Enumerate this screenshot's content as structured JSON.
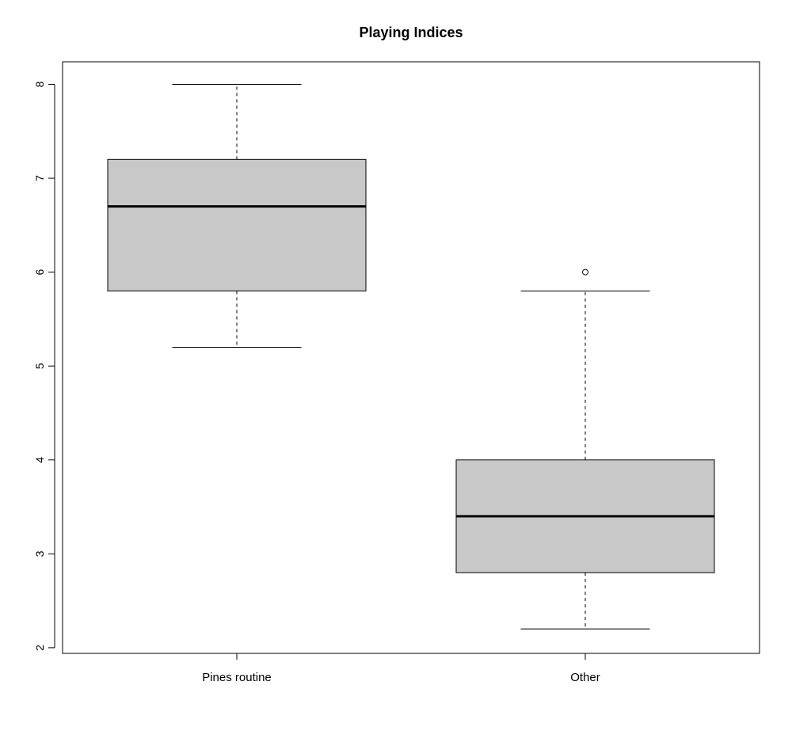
{
  "chart_data": {
    "type": "boxplot",
    "title": "Playing Indices",
    "xlabel": "",
    "ylabel": "",
    "ylim": [
      1.94,
      8.24
    ],
    "yticks": [
      2,
      3,
      4,
      5,
      6,
      7,
      8
    ],
    "ytick_labels": [
      "2",
      "3",
      "4",
      "5",
      "6",
      "7",
      "8"
    ],
    "categories": [
      "Pines routine",
      "Other"
    ],
    "boxes": [
      {
        "category": "Pines routine",
        "whisker_low": 5.2,
        "q1": 5.8,
        "median": 6.7,
        "q3": 7.2,
        "whisker_high": 8.0,
        "outliers": []
      },
      {
        "category": "Other",
        "whisker_low": 2.2,
        "q1": 2.8,
        "median": 3.4,
        "q3": 4.0,
        "whisker_high": 5.8,
        "outliers": [
          6.0
        ]
      }
    ],
    "grid": false,
    "colors": {
      "box_fill": "#c8c8c8",
      "stroke": "#000000"
    }
  }
}
